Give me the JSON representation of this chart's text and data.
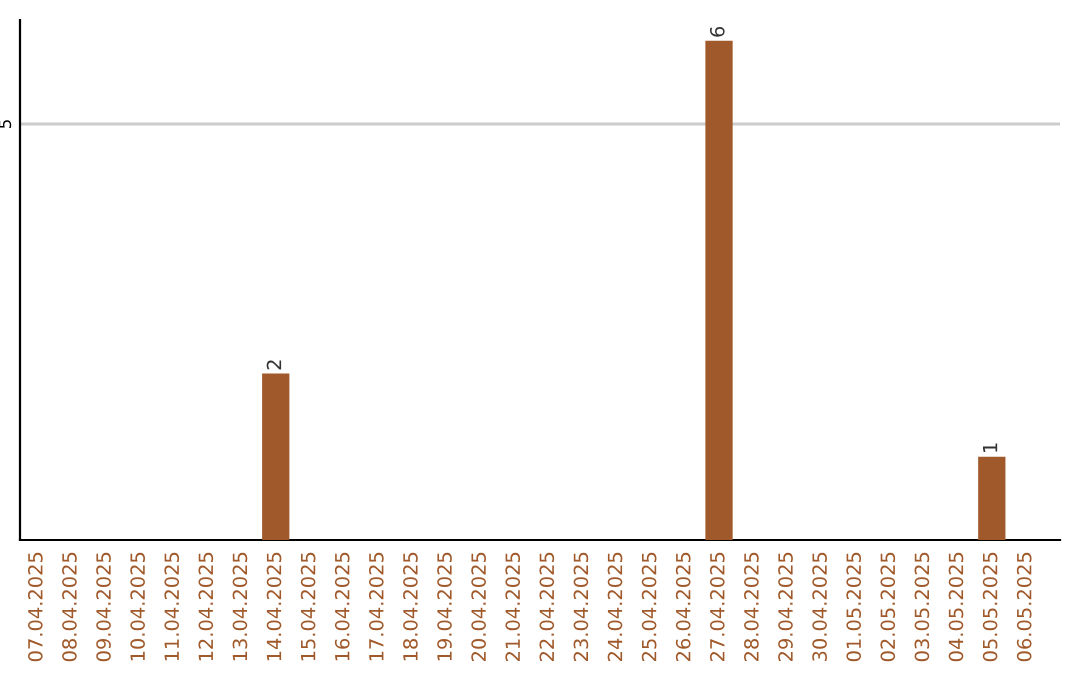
{
  "chart_data": {
    "type": "bar",
    "categories": [
      "07.04.2025",
      "08.04.2025",
      "09.04.2025",
      "10.04.2025",
      "11.04.2025",
      "12.04.2025",
      "13.04.2025",
      "14.04.2025",
      "15.04.2025",
      "16.04.2025",
      "17.04.2025",
      "18.04.2025",
      "19.04.2025",
      "20.04.2025",
      "21.04.2025",
      "22.04.2025",
      "23.04.2025",
      "24.04.2025",
      "25.04.2025",
      "26.04.2025",
      "27.04.2025",
      "28.04.2025",
      "29.04.2025",
      "30.04.2025",
      "01.05.2025",
      "02.05.2025",
      "03.05.2025",
      "04.05.2025",
      "05.05.2025",
      "06.05.2025"
    ],
    "values": [
      0,
      0,
      0,
      0,
      0,
      0,
      0,
      2,
      0,
      0,
      0,
      0,
      0,
      0,
      0,
      0,
      0,
      0,
      0,
      0,
      6,
      0,
      0,
      0,
      0,
      0,
      0,
      0,
      1,
      0
    ],
    "value_labels": [
      null,
      null,
      null,
      null,
      null,
      null,
      null,
      "2",
      null,
      null,
      null,
      null,
      null,
      null,
      null,
      null,
      null,
      null,
      null,
      null,
      "6",
      null,
      null,
      null,
      null,
      null,
      null,
      null,
      "1",
      null
    ],
    "color": "#a0592a",
    "ylim": [
      0,
      6.25
    ],
    "yticks": [
      5
    ],
    "grid": "y"
  }
}
